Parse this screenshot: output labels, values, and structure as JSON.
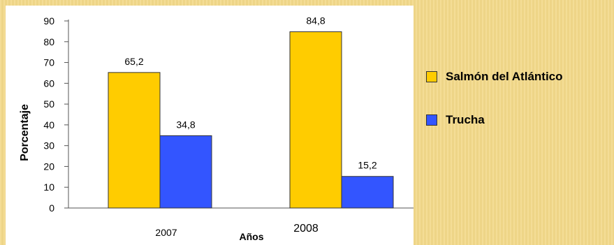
{
  "chart_data": {
    "type": "bar",
    "categories": [
      "2007",
      "2008"
    ],
    "series": [
      {
        "name": "Salmón del Atlántico",
        "values": [
          65.2,
          84.8
        ],
        "value_labels": [
          "65,2",
          "84,8"
        ],
        "color": "#ffcc00"
      },
      {
        "name": "Trucha",
        "values": [
          34.8,
          15.2
        ],
        "value_labels": [
          "34,8",
          "15,2"
        ],
        "color": "#3355ff"
      }
    ],
    "xlabel": "Años",
    "ylabel": "Porcentaje",
    "ylim": [
      0,
      90
    ],
    "yticks": [
      "0",
      "10",
      "20",
      "30",
      "40",
      "50",
      "60",
      "70",
      "80",
      "90"
    ],
    "grid": false,
    "legend_position": "right"
  }
}
